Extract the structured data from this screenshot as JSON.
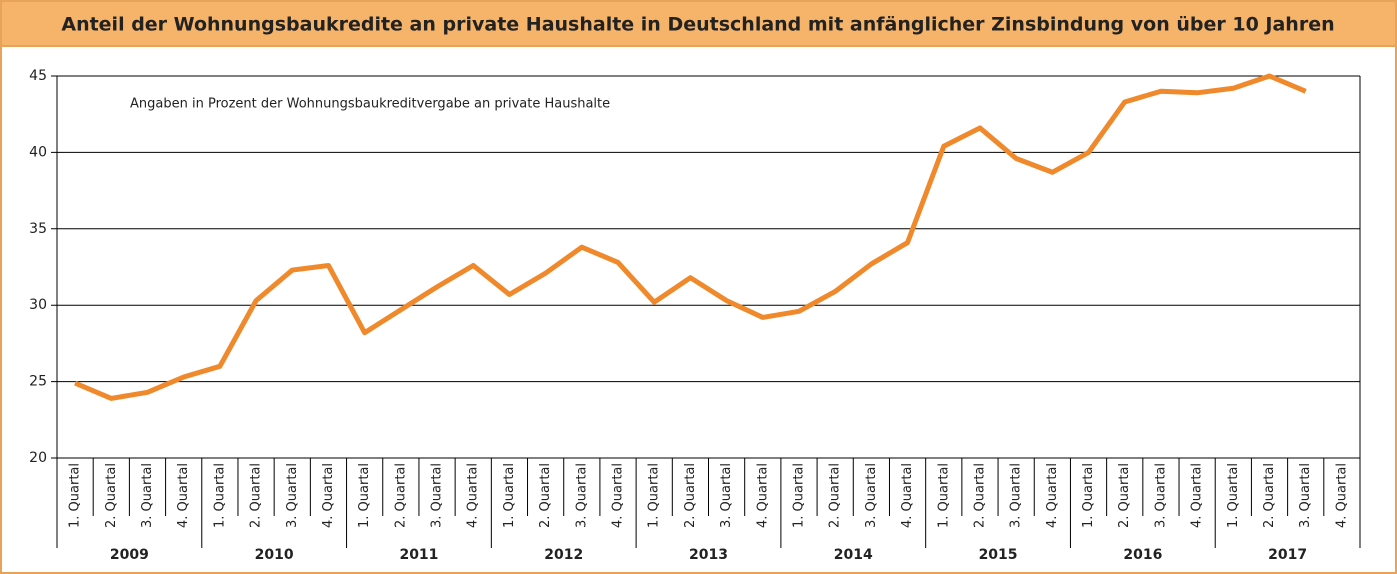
{
  "chart_data": {
    "type": "line",
    "title": "Anteil der Wohnungsbaukredite an private Haushalte in Deutschland mit anfänglicher Zinsbindung von über 10 Jahren",
    "subtitle": "Angaben in Prozent der Wohnungsbaukreditvergabe an private Haushalte",
    "categories": [
      "1. Quartal",
      "2. Quartal",
      "3. Quartal",
      "4. Quartal",
      "1. Quartal",
      "2. Quartal",
      "3. Quartal",
      "4. Quartal",
      "1. Quartal",
      "2. Quartal",
      "3. Quartal",
      "4. Quartal",
      "1. Quartal",
      "2. Quartal",
      "3. Quartal",
      "4. Quartal",
      "1. Quartal",
      "2. Quartal",
      "3. Quartal",
      "4. Quartal",
      "1. Quartal",
      "2. Quartal",
      "3. Quartal",
      "4. Quartal",
      "1. Quartal",
      "2. Quartal",
      "3. Quartal",
      "4. Quartal",
      "1. Quartal",
      "2. Quartal",
      "3. Quartal",
      "4. Quartal",
      "1. Quartal",
      "2. Quartal",
      "3. Quartal",
      "4. Quartal"
    ],
    "years": [
      "2009",
      "2010",
      "2011",
      "2012",
      "2013",
      "2014",
      "2015",
      "2016",
      "2017"
    ],
    "series": [
      {
        "color": "#f0892b",
        "values": [
          24.9,
          23.9,
          24.3,
          25.3,
          26.0,
          30.3,
          32.3,
          32.6,
          28.2,
          29.7,
          31.2,
          32.6,
          30.7,
          32.1,
          33.8,
          32.8,
          30.2,
          31.8,
          30.3,
          29.2,
          29.6,
          30.9,
          32.7,
          34.1,
          40.4,
          41.6,
          39.6,
          38.7,
          40.0,
          43.3,
          44.0,
          43.9,
          44.2,
          45.0,
          44.0,
          null
        ]
      }
    ],
    "ylim": [
      20,
      45
    ],
    "yticks": [
      20,
      25,
      30,
      35,
      40,
      45
    ],
    "grid": true
  }
}
